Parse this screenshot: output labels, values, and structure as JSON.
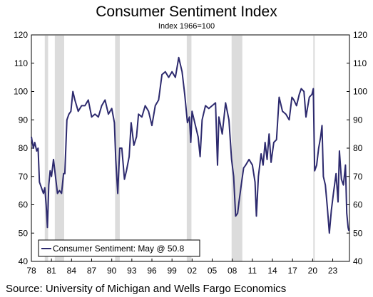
{
  "chart_data": {
    "type": "line",
    "title": "Consumer Sentiment Index",
    "subtitle": "Index 1966=100",
    "source": "Source: University of Michigan and Wells Fargo Economics",
    "legend_label": "Consumer Sentiment: May @ 50.8",
    "legend_placement": "bottom-left",
    "ylim": [
      40,
      120
    ],
    "yticks": [
      40,
      50,
      60,
      70,
      80,
      90,
      100,
      110,
      120
    ],
    "xlim": [
      1978,
      2025.5
    ],
    "xtick_labels": [
      "78",
      "81",
      "84",
      "87",
      "90",
      "93",
      "96",
      "99",
      "02",
      "05",
      "08",
      "11",
      "14",
      "17",
      "20",
      "23"
    ],
    "recessions": [
      [
        1980.0,
        1980.5
      ],
      [
        1981.5,
        1982.9
      ],
      [
        1990.5,
        1991.2
      ],
      [
        2001.2,
        2001.9
      ],
      [
        2007.9,
        2009.5
      ],
      [
        2020.1,
        2020.3
      ]
    ],
    "grid": false,
    "colors": {
      "series": "#2d2a6e",
      "recession": "#dcdcdc"
    },
    "series": [
      {
        "name": "Consumer Sentiment",
        "points": [
          [
            1978.0,
            84
          ],
          [
            1978.3,
            80
          ],
          [
            1978.5,
            82
          ],
          [
            1978.8,
            79
          ],
          [
            1979.0,
            80
          ],
          [
            1979.2,
            68
          ],
          [
            1979.5,
            66
          ],
          [
            1979.8,
            64
          ],
          [
            1980.0,
            66
          ],
          [
            1980.2,
            60
          ],
          [
            1980.4,
            52
          ],
          [
            1980.6,
            67
          ],
          [
            1980.8,
            72
          ],
          [
            1981.0,
            70
          ],
          [
            1981.3,
            76
          ],
          [
            1981.6,
            70
          ],
          [
            1981.9,
            64
          ],
          [
            1982.2,
            65
          ],
          [
            1982.5,
            64
          ],
          [
            1982.8,
            71
          ],
          [
            1983.0,
            71
          ],
          [
            1983.3,
            90
          ],
          [
            1983.6,
            92
          ],
          [
            1983.9,
            93
          ],
          [
            1984.2,
            100
          ],
          [
            1984.5,
            97
          ],
          [
            1985.0,
            93
          ],
          [
            1985.5,
            95
          ],
          [
            1986.0,
            95
          ],
          [
            1986.5,
            97
          ],
          [
            1987.0,
            91
          ],
          [
            1987.5,
            92
          ],
          [
            1988.0,
            91
          ],
          [
            1988.5,
            95
          ],
          [
            1989.0,
            97
          ],
          [
            1989.5,
            92
          ],
          [
            1990.0,
            94
          ],
          [
            1990.4,
            89
          ],
          [
            1990.6,
            76
          ],
          [
            1990.9,
            64
          ],
          [
            1991.2,
            80
          ],
          [
            1991.5,
            80
          ],
          [
            1991.9,
            69
          ],
          [
            1992.2,
            72
          ],
          [
            1992.6,
            77
          ],
          [
            1992.9,
            89
          ],
          [
            1993.3,
            81
          ],
          [
            1993.7,
            84
          ],
          [
            1994.0,
            92
          ],
          [
            1994.5,
            91
          ],
          [
            1995.0,
            95
          ],
          [
            1995.5,
            93
          ],
          [
            1996.0,
            88
          ],
          [
            1996.5,
            95
          ],
          [
            1997.0,
            97
          ],
          [
            1997.5,
            106
          ],
          [
            1998.0,
            107
          ],
          [
            1998.5,
            105
          ],
          [
            1999.0,
            107
          ],
          [
            1999.5,
            105
          ],
          [
            2000.0,
            112
          ],
          [
            2000.5,
            107
          ],
          [
            2000.9,
            99
          ],
          [
            2001.3,
            89
          ],
          [
            2001.6,
            91
          ],
          [
            2001.8,
            82
          ],
          [
            2002.0,
            93
          ],
          [
            2002.5,
            88
          ],
          [
            2002.9,
            84
          ],
          [
            2003.2,
            77
          ],
          [
            2003.5,
            90
          ],
          [
            2004.0,
            95
          ],
          [
            2004.5,
            94
          ],
          [
            2005.0,
            95
          ],
          [
            2005.5,
            96
          ],
          [
            2005.8,
            74
          ],
          [
            2006.0,
            91
          ],
          [
            2006.5,
            85
          ],
          [
            2007.0,
            96
          ],
          [
            2007.5,
            90
          ],
          [
            2007.9,
            76
          ],
          [
            2008.2,
            70
          ],
          [
            2008.5,
            56
          ],
          [
            2008.8,
            57
          ],
          [
            2009.0,
            61
          ],
          [
            2009.4,
            68
          ],
          [
            2009.7,
            73
          ],
          [
            2010.0,
            74
          ],
          [
            2010.5,
            76
          ],
          [
            2011.0,
            74
          ],
          [
            2011.4,
            68
          ],
          [
            2011.6,
            56
          ],
          [
            2011.9,
            70
          ],
          [
            2012.3,
            78
          ],
          [
            2012.6,
            74
          ],
          [
            2012.9,
            82
          ],
          [
            2013.2,
            76
          ],
          [
            2013.5,
            85
          ],
          [
            2013.8,
            75
          ],
          [
            2014.2,
            82
          ],
          [
            2014.6,
            83
          ],
          [
            2015.0,
            98
          ],
          [
            2015.5,
            93
          ],
          [
            2016.0,
            92
          ],
          [
            2016.5,
            90
          ],
          [
            2016.9,
            98
          ],
          [
            2017.2,
            97
          ],
          [
            2017.6,
            95
          ],
          [
            2018.0,
            99
          ],
          [
            2018.3,
            101
          ],
          [
            2018.7,
            100
          ],
          [
            2019.0,
            91
          ],
          [
            2019.5,
            98
          ],
          [
            2019.9,
            99
          ],
          [
            2020.1,
            101
          ],
          [
            2020.3,
            72
          ],
          [
            2020.6,
            74
          ],
          [
            2020.9,
            80
          ],
          [
            2021.2,
            84
          ],
          [
            2021.4,
            88
          ],
          [
            2021.6,
            70
          ],
          [
            2021.9,
            67
          ],
          [
            2022.2,
            59
          ],
          [
            2022.5,
            50
          ],
          [
            2022.8,
            58
          ],
          [
            2023.1,
            64
          ],
          [
            2023.5,
            71
          ],
          [
            2023.8,
            61
          ],
          [
            2024.0,
            79
          ],
          [
            2024.3,
            69
          ],
          [
            2024.6,
            67
          ],
          [
            2024.9,
            74
          ],
          [
            2025.1,
            57
          ],
          [
            2025.3,
            52
          ],
          [
            2025.4,
            50.8
          ]
        ]
      }
    ]
  }
}
